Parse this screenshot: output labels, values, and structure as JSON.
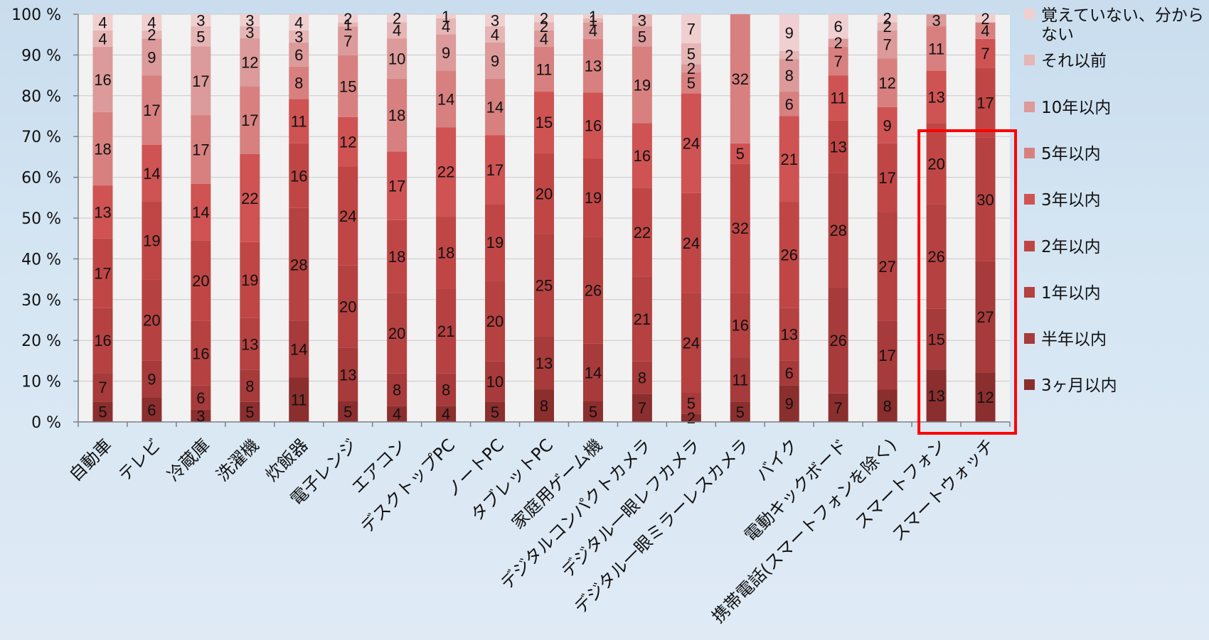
{
  "chart_data": {
    "type": "bar",
    "stacked": true,
    "percent": true,
    "ylim": [
      0,
      100
    ],
    "y_ticks": [
      "0 %",
      "10 %",
      "20 %",
      "30 %",
      "40 %",
      "50 %",
      "60 %",
      "70 %",
      "80 %",
      "90 %",
      "100 %"
    ],
    "categories": [
      "自動車",
      "テレビ",
      "冷蔵庫",
      "洗濯機",
      "炊飯器",
      "電子レンジ",
      "エアコン",
      "デスクトップPC",
      "ノートPC",
      "タブレットPC",
      "家庭用ゲーム機",
      "デジタルコンパクトカメラ",
      "デジタル一眼レフカメラ",
      "デジタル一眼ミラーレスカメラ",
      "バイク",
      "電動キックボード",
      "携帯電話(スマートフォンを除く)",
      "スマートフォン",
      "スマートウォッチ"
    ],
    "series": [
      {
        "name": "3ヶ月以内",
        "color": "#8b2e2e",
        "values": [
          5,
          6,
          3,
          5,
          11,
          5,
          4,
          4,
          5,
          8,
          5,
          7,
          2,
          5,
          9,
          7,
          8,
          13,
          12
        ]
      },
      {
        "name": "半年以内",
        "color": "#a73a3a",
        "values": [
          7,
          9,
          6,
          8,
          14,
          13,
          8,
          8,
          10,
          13,
          14,
          8,
          5,
          11,
          6,
          26,
          17,
          15,
          27
        ]
      },
      {
        "name": "1年以内",
        "color": "#b54141",
        "values": [
          16,
          20,
          16,
          13,
          28,
          20,
          20,
          21,
          20,
          25,
          26,
          21,
          24,
          16,
          13,
          28,
          27,
          26,
          30
        ]
      },
      {
        "name": "2年以内",
        "color": "#c04646",
        "values": [
          17,
          19,
          20,
          19,
          16,
          24,
          18,
          18,
          19,
          20,
          19,
          22,
          24,
          32,
          26,
          13,
          17,
          20,
          17
        ]
      },
      {
        "name": "3年以内",
        "color": "#cf5353",
        "values": [
          13,
          14,
          14,
          22,
          11,
          12,
          17,
          22,
          17,
          15,
          16,
          16,
          24,
          5,
          21,
          11,
          9,
          13,
          7
        ]
      },
      {
        "name": "5年以内",
        "color": "#d88080",
        "values": [
          18,
          17,
          17,
          17,
          8,
          15,
          18,
          14,
          14,
          11,
          13,
          19,
          5,
          32,
          6,
          7,
          12,
          11,
          4
        ]
      },
      {
        "name": "10年以内",
        "color": "#dc9a9a",
        "values": [
          16,
          9,
          17,
          12,
          6,
          7,
          10,
          9,
          9,
          4,
          4,
          5,
          2,
          0,
          8,
          2,
          7,
          3,
          0
        ]
      },
      {
        "name": "それ以前",
        "color": "#e6b5b5",
        "values": [
          4,
          2,
          5,
          3,
          3,
          1,
          4,
          4,
          4,
          2,
          1,
          3,
          5,
          0,
          2,
          0,
          2,
          0,
          0
        ]
      },
      {
        "name": "覚えていない、分からない",
        "color": "#f0cfd0",
        "values": [
          4,
          4,
          3,
          3,
          4,
          2,
          2,
          1,
          3,
          2,
          1,
          0,
          7,
          0,
          9,
          6,
          2,
          0,
          2
        ]
      }
    ],
    "legend_position": "right",
    "legend": [
      "覚えていない、分から",
      "ない",
      "それ以前",
      "10年以内",
      "5年以内",
      "3年以内",
      "2年以内",
      "1年以内",
      "半年以内",
      "3ヶ月以内"
    ],
    "highlight": {
      "categories": [
        "スマートフォン",
        "スマートウォッチ"
      ],
      "color": "#ff0000"
    },
    "plot_background": "#f2f2f2",
    "grid": true
  }
}
